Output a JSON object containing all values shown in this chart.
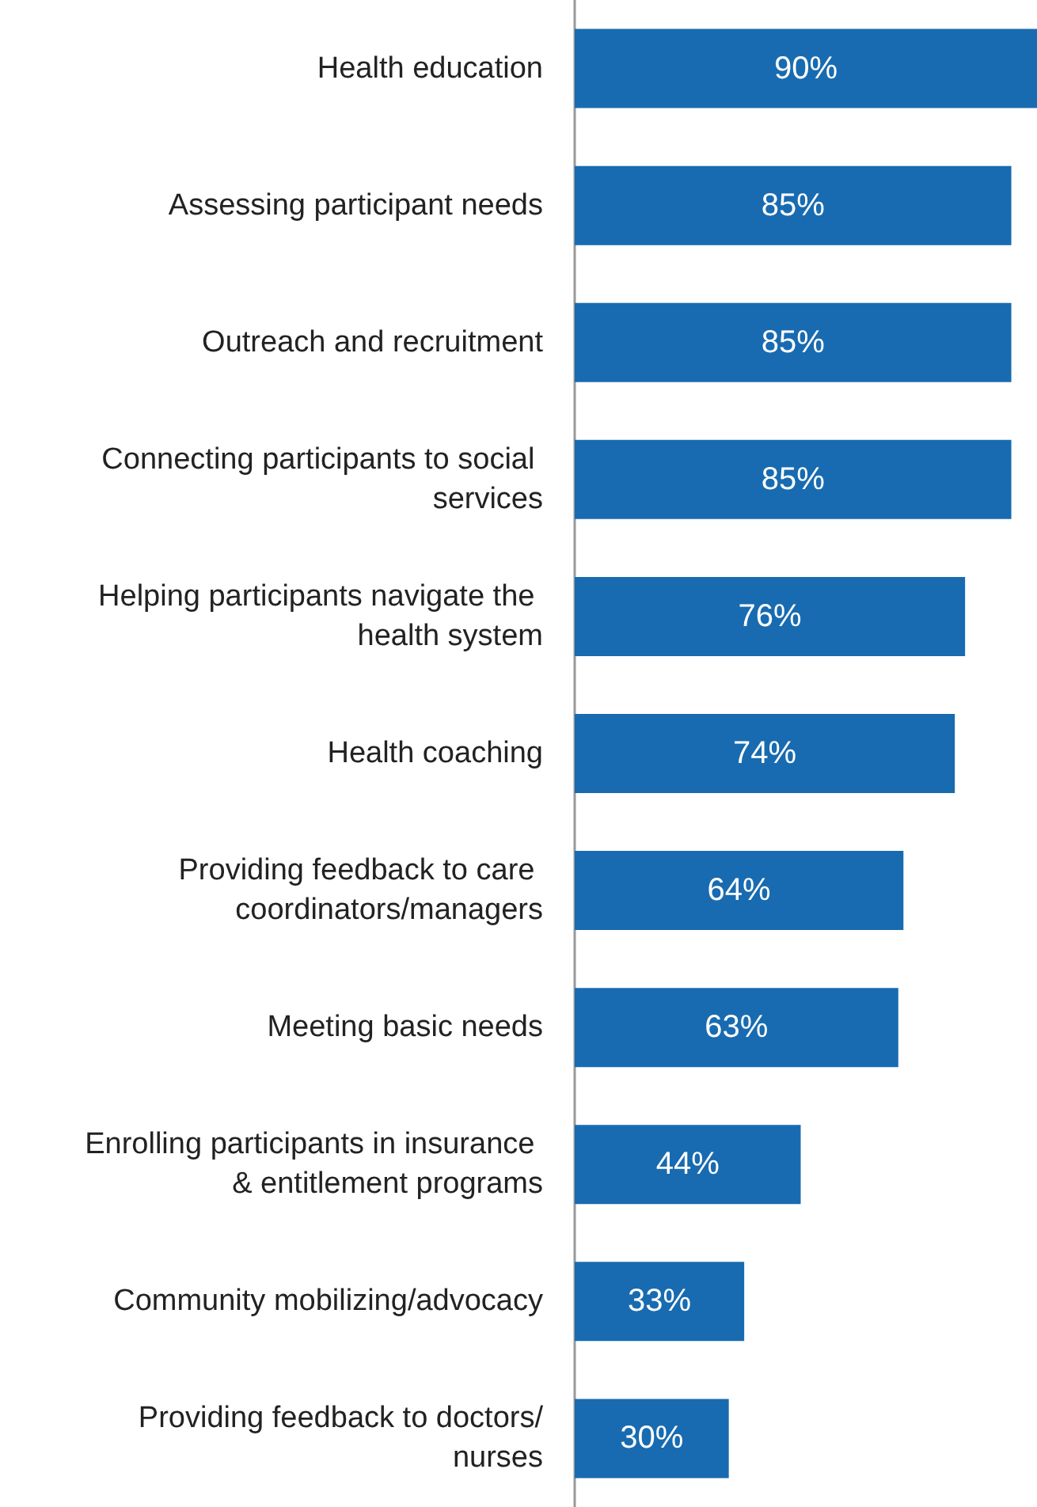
{
  "chart_data": {
    "type": "bar",
    "orientation": "horizontal",
    "value_labels": [
      "90%",
      "85%",
      "85%",
      "85%",
      "76%",
      "74%",
      "64%",
      "63%",
      "44%",
      "33%",
      "30%"
    ],
    "categories": [
      "Health education",
      "Assessing participant needs",
      "Outreach and recruitment",
      "Connecting participants to social services",
      "Helping participants navigate the health system",
      "Health coaching",
      "Providing feedback to care coordinators/managers",
      "Meeting basic needs",
      "Enrolling participants in insurance & entitlement programs",
      "Community mobilizing/advocacy",
      "Providing feedback to doctors/nurses"
    ],
    "values": [
      90,
      85,
      85,
      85,
      76,
      74,
      64,
      63,
      44,
      33,
      30
    ],
    "color": "#186bb0"
  }
}
